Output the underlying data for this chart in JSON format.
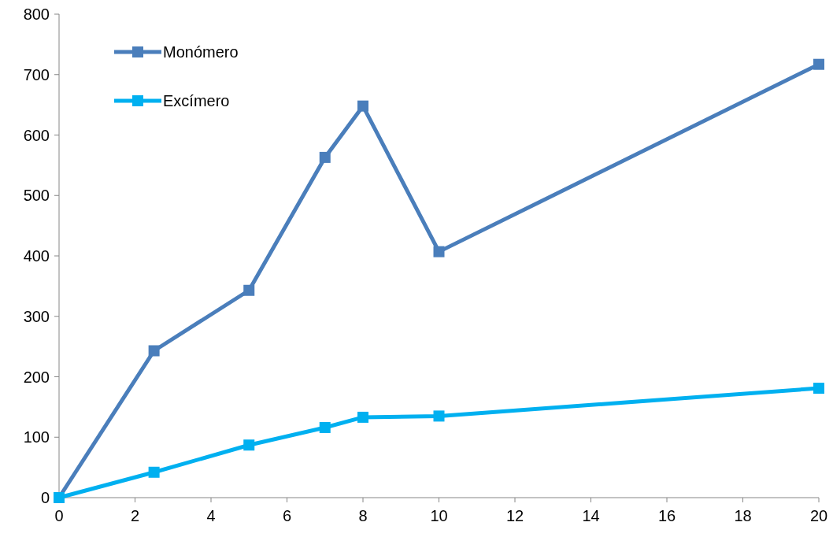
{
  "chart_data": {
    "type": "line",
    "x": [
      0,
      2.5,
      5,
      7,
      8,
      10,
      20
    ],
    "series": [
      {
        "name": "Monómero",
        "color": "#4a7ebb",
        "values": [
          0,
          243,
          343,
          563,
          648,
          407,
          717
        ]
      },
      {
        "name": "Excímero",
        "color": "#00b0f0",
        "values": [
          0,
          42,
          87,
          116,
          133,
          135,
          181
        ]
      }
    ],
    "xlim": [
      0,
      20
    ],
    "xticks": [
      0,
      2,
      4,
      6,
      8,
      10,
      12,
      14,
      16,
      18,
      20
    ],
    "ylim": [
      0,
      800
    ],
    "yticks": [
      0,
      100,
      200,
      300,
      400,
      500,
      600,
      700,
      800
    ],
    "grid": false,
    "legend": "top left",
    "marker": "square",
    "line_style": "solid"
  }
}
